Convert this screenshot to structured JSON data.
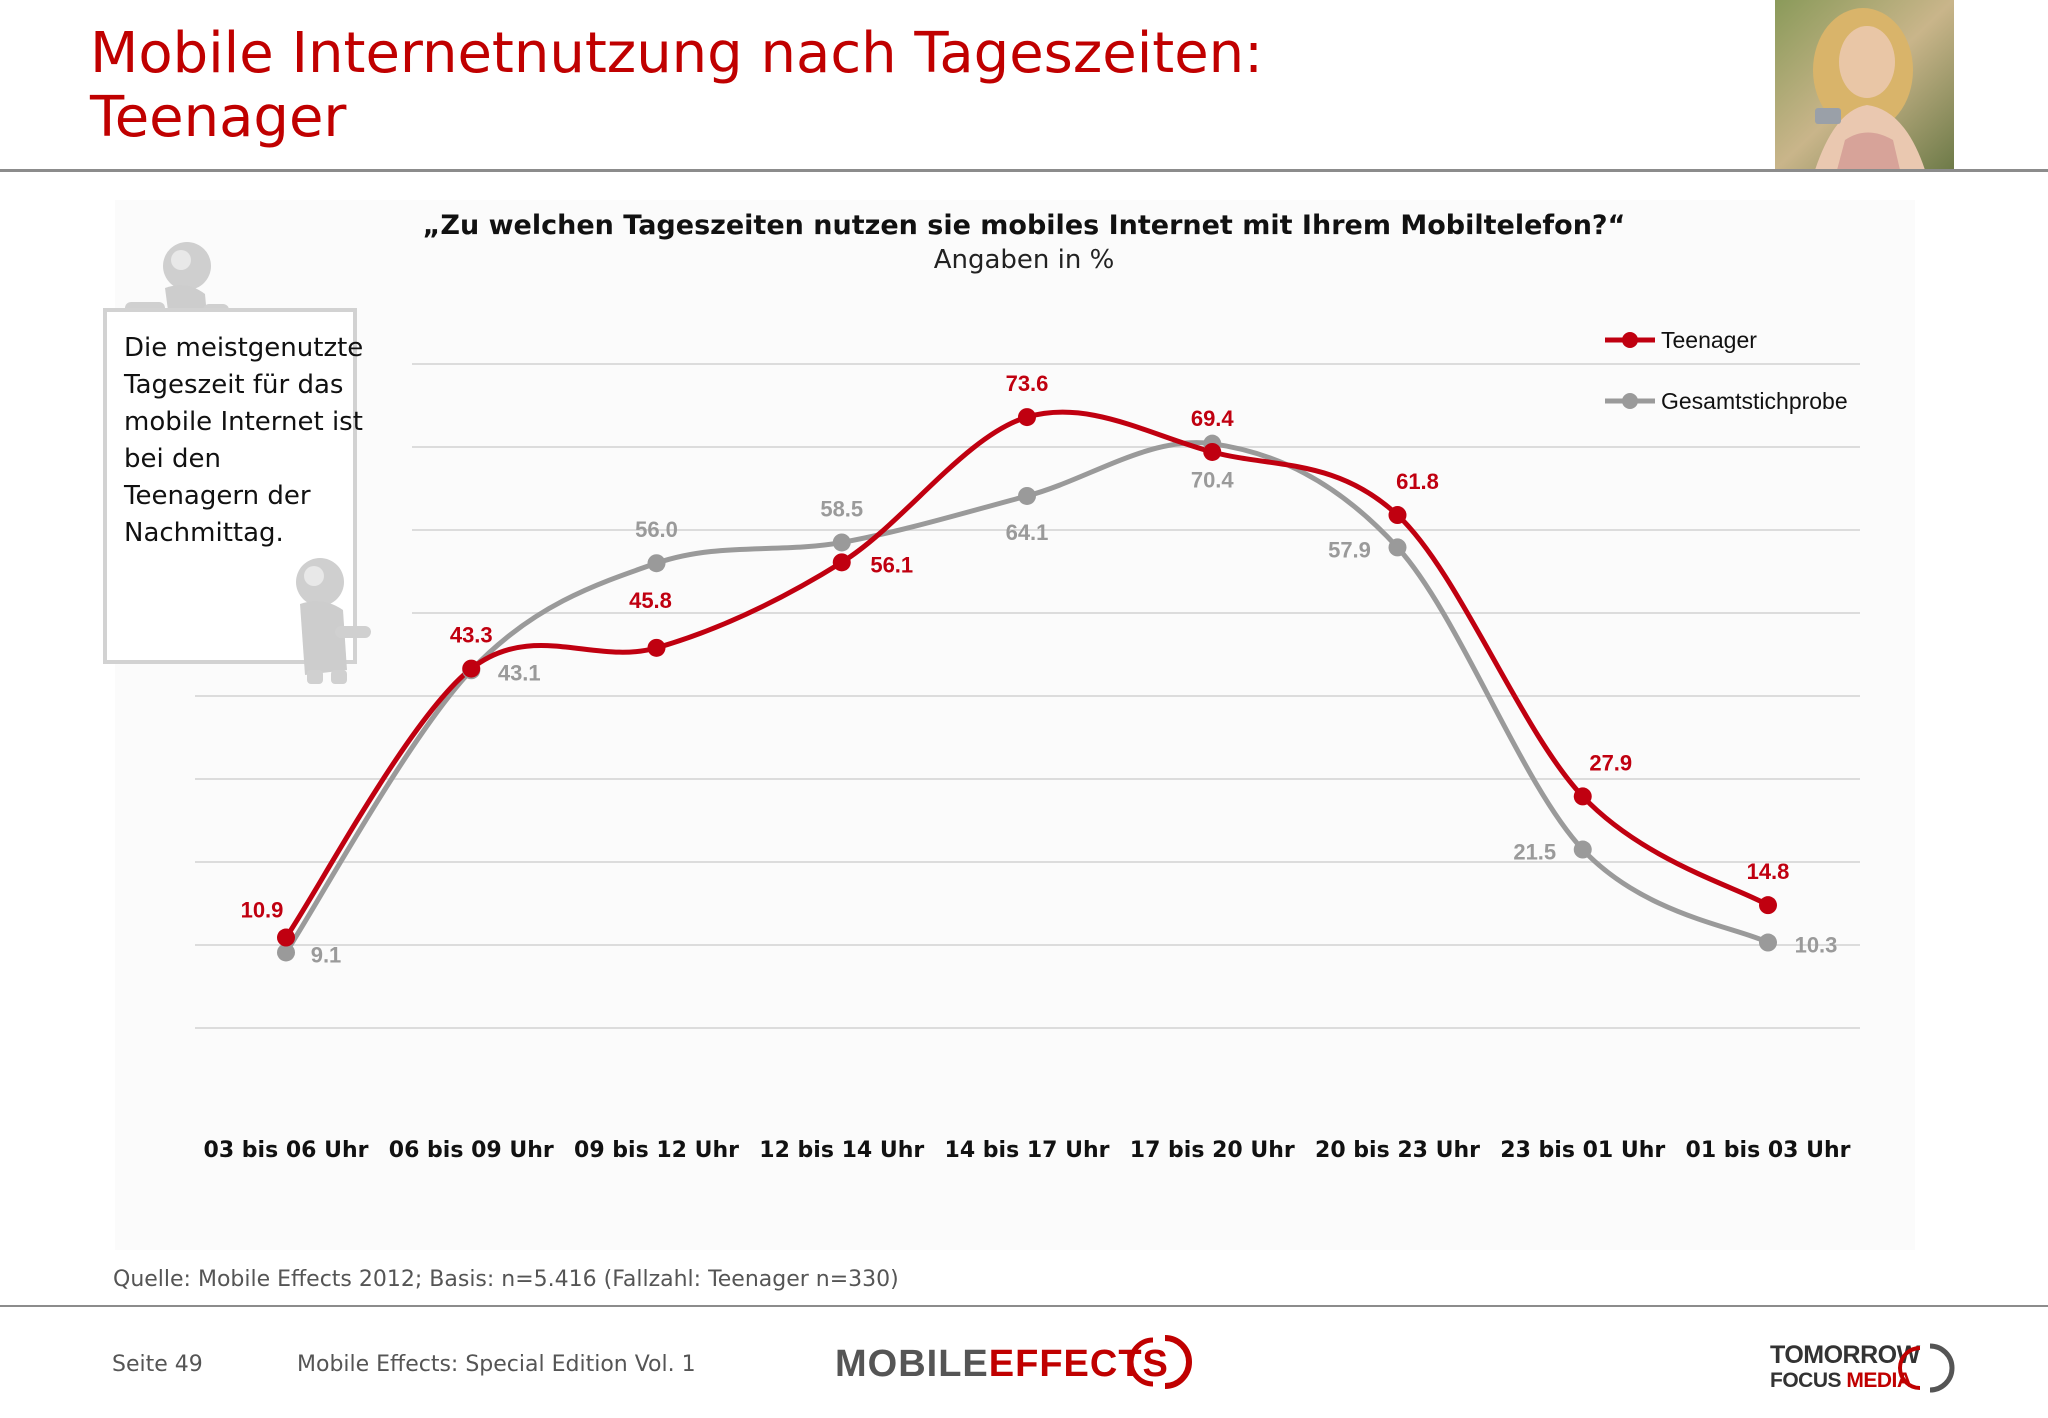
{
  "header": {
    "title_line1": "Mobile Internetnutzung nach Tageszeiten:",
    "title_line2": "Teenager"
  },
  "note": {
    "text": "Die meistgenutzte Tageszeit für das mobile Internet ist bei den Teenagern der Nachmittag."
  },
  "footer": {
    "source": "Quelle: Mobile Effects 2012; Basis: n=5.416 (Fallzahl: Teenager n=330)",
    "page": "Seite 49",
    "edition": "Mobile Effects: Special Edition Vol. 1",
    "logo_mobile": "MOBILE",
    "logo_effects": "EFFECTS",
    "logo_tfm_line1": "TOMORROW",
    "logo_tfm_line2_a": "FOCUS",
    "logo_tfm_line2_b": "MEDIA"
  },
  "colors": {
    "teenager": "#c00010",
    "gesamt": "#9a9a9a",
    "title": "#c00000"
  },
  "chart_data": {
    "type": "line",
    "title": "„Zu welchen Tageszeiten nutzen sie mobiles Internet mit Ihrem Mobiltelefon?“",
    "subtitle": "Angaben in %",
    "categories": [
      "03 bis 06 Uhr",
      "06 bis 09 Uhr",
      "09 bis 12 Uhr",
      "12 bis 14 Uhr",
      "14 bis 17 Uhr",
      "17 bis 20 Uhr",
      "20 bis 23 Uhr",
      "23 bis 01 Uhr",
      "01 bis 03 Uhr"
    ],
    "series": [
      {
        "name": "Teenager",
        "values": [
          10.9,
          43.3,
          45.8,
          56.1,
          73.6,
          69.4,
          61.8,
          27.9,
          14.8
        ]
      },
      {
        "name": "Gesamtstichprobe",
        "values": [
          9.1,
          43.1,
          56.0,
          58.5,
          64.1,
          70.4,
          57.9,
          21.5,
          10.3
        ]
      }
    ],
    "ylim": [
      0,
      90
    ],
    "grid": true,
    "smooth": true,
    "legend": "top-right"
  }
}
